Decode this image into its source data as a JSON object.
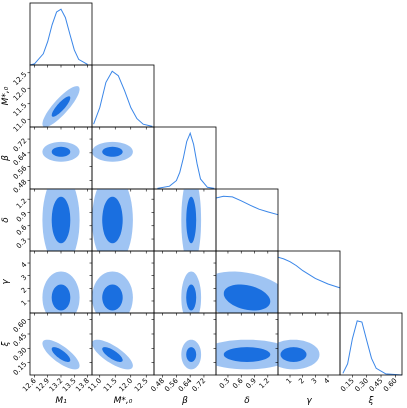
{
  "chart_data": {
    "type": "corner",
    "color": "#3a86e8",
    "contour_colors": [
      "#9fc4f3",
      "#1a6fe0"
    ],
    "parameters": [
      {
        "label": "M₁",
        "lim": [
          12.5,
          13.9
        ],
        "ticks": [
          12.6,
          12.9,
          13.2,
          13.5,
          13.8
        ],
        "density": {
          "x": [
            12.5,
            12.6,
            12.8,
            12.9,
            13.0,
            13.1,
            13.2,
            13.3,
            13.4,
            13.5,
            13.6,
            13.8
          ],
          "values": [
            0,
            0.02,
            0.2,
            0.42,
            0.72,
            0.95,
            1,
            0.85,
            0.55,
            0.27,
            0.1,
            0.01
          ]
        }
      },
      {
        "label": "M*,₀",
        "lim": [
          10.75,
          12.75
        ],
        "ticks": [
          {
            "value": 11.0,
            "label": "11.0"
          },
          11.5,
          {
            "value": 12.0,
            "label": "12.0"
          },
          12.5
        ],
        "density": {
          "x": [
            10.8,
            11.0,
            11.2,
            11.4,
            11.6,
            11.8,
            12.0,
            12.2,
            12.4,
            12.7
          ],
          "values": [
            0.05,
            0.35,
            0.8,
            1,
            0.92,
            0.65,
            0.35,
            0.15,
            0.05,
            0.01
          ]
        }
      },
      {
        "label": "β",
        "lim": [
          0.43,
          0.79
        ],
        "ticks": [
          0.48,
          0.56,
          0.64,
          0.72
        ],
        "density": {
          "x": [
            0.45,
            0.52,
            0.56,
            0.58,
            0.6,
            0.62,
            0.64,
            0.66,
            0.68,
            0.7,
            0.74,
            0.78
          ],
          "values": [
            0.01,
            0.05,
            0.15,
            0.3,
            0.55,
            0.85,
            1,
            0.8,
            0.45,
            0.18,
            0.03,
            0.01
          ]
        }
      },
      {
        "label": "δ",
        "lim": [
          0.03,
          1.43
        ],
        "ticks": [
          0.3,
          0.6,
          0.9,
          1.2
        ],
        "density": {
          "x": [
            0.03,
            0.2,
            0.4,
            0.6,
            0.8,
            1.0,
            1.2,
            1.43
          ],
          "values": [
            0.95,
            0.98,
            0.97,
            0.9,
            0.82,
            0.75,
            0.7,
            0.65
          ]
        }
      },
      {
        "label": "γ",
        "lim": [
          0.05,
          4.95
        ],
        "ticks": [
          1,
          2,
          3,
          4
        ],
        "density": {
          "x": [
            0.05,
            0.5,
            1,
            1.5,
            2,
            3,
            4,
            4.95
          ],
          "values": [
            1,
            0.97,
            0.92,
            0.85,
            0.76,
            0.62,
            0.52,
            0.45
          ]
        }
      },
      {
        "label": "ξ",
        "lim": [
          0.02,
          0.67
        ],
        "ticks": [
          0.15,
          {
            "value": 0.3,
            "label": "0.30"
          },
          0.45,
          {
            "value": 0.6,
            "label": "0.60"
          }
        ],
        "density": {
          "x": [
            0.05,
            0.1,
            0.15,
            0.2,
            0.25,
            0.3,
            0.35,
            0.4,
            0.5,
            0.67
          ],
          "values": [
            0.03,
            0.2,
            0.65,
            0.97,
            0.95,
            0.62,
            0.3,
            0.12,
            0.02,
            0
          ]
        }
      }
    ]
  }
}
